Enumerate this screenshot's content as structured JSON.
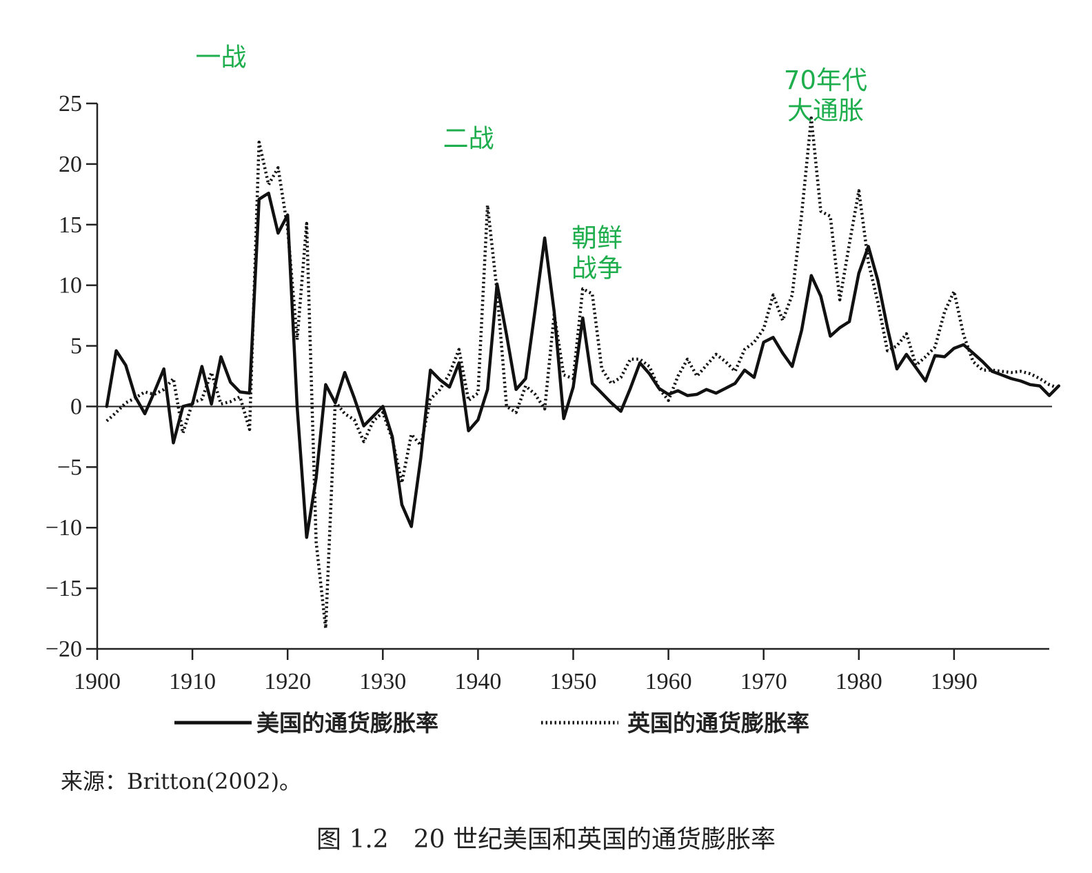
{
  "chart_data": {
    "type": "line",
    "title": "",
    "xlabel": "",
    "ylabel": "",
    "xlim": [
      1900,
      2000
    ],
    "ylim": [
      -20,
      25
    ],
    "x_ticks": [
      1900,
      1910,
      1920,
      1930,
      1940,
      1950,
      1960,
      1970,
      1980,
      1990
    ],
    "y_ticks": [
      25,
      20,
      15,
      10,
      5,
      0,
      -5,
      -10,
      -15,
      -20
    ],
    "grid": false,
    "legend_position": "bottom",
    "series": [
      {
        "name": "美国的通货膨胀率",
        "style": "solid",
        "color": "#111111",
        "points": [
          [
            1901,
            0.0
          ],
          [
            1902,
            4.6
          ],
          [
            1903,
            3.4
          ],
          [
            1904,
            0.8
          ],
          [
            1905,
            -0.6
          ],
          [
            1906,
            1.2
          ],
          [
            1907,
            3.1
          ],
          [
            1908,
            -3.0
          ],
          [
            1909,
            0.0
          ],
          [
            1910,
            0.2
          ],
          [
            1911,
            3.3
          ],
          [
            1912,
            0.2
          ],
          [
            1913,
            4.1
          ],
          [
            1914,
            2.0
          ],
          [
            1915,
            1.2
          ],
          [
            1916,
            1.1
          ],
          [
            1917,
            17.1
          ],
          [
            1918,
            17.6
          ],
          [
            1919,
            14.3
          ],
          [
            1920,
            15.8
          ],
          [
            1921,
            0.0
          ],
          [
            1922,
            -10.8
          ],
          [
            1923,
            -5.9
          ],
          [
            1924,
            1.8
          ],
          [
            1925,
            0.3
          ],
          [
            1926,
            2.8
          ],
          [
            1927,
            0.7
          ],
          [
            1928,
            -1.6
          ],
          [
            1929,
            -0.8
          ],
          [
            1930,
            0.0
          ],
          [
            1931,
            -2.5
          ],
          [
            1932,
            -8.1
          ],
          [
            1933,
            -9.9
          ],
          [
            1934,
            -4.2
          ],
          [
            1935,
            3.0
          ],
          [
            1936,
            2.2
          ],
          [
            1937,
            1.6
          ],
          [
            1938,
            3.6
          ],
          [
            1939,
            -2.0
          ],
          [
            1940,
            -1.1
          ],
          [
            1941,
            1.4
          ],
          [
            1942,
            10.1
          ],
          [
            1943,
            5.9
          ],
          [
            1944,
            1.4
          ],
          [
            1945,
            2.3
          ],
          [
            1946,
            8.0
          ],
          [
            1947,
            13.9
          ],
          [
            1948,
            7.8
          ],
          [
            1949,
            -1.0
          ],
          [
            1950,
            1.6
          ],
          [
            1951,
            7.3
          ],
          [
            1952,
            1.9
          ],
          [
            1953,
            1.1
          ],
          [
            1954,
            0.3
          ],
          [
            1955,
            -0.4
          ],
          [
            1956,
            1.5
          ],
          [
            1957,
            3.6
          ],
          [
            1958,
            2.7
          ],
          [
            1959,
            1.5
          ],
          [
            1960,
            1.0
          ],
          [
            1961,
            1.3
          ],
          [
            1962,
            0.9
          ],
          [
            1963,
            1.0
          ],
          [
            1964,
            1.4
          ],
          [
            1965,
            1.1
          ],
          [
            1966,
            1.5
          ],
          [
            1967,
            1.9
          ],
          [
            1968,
            3.0
          ],
          [
            1969,
            2.4
          ],
          [
            1970,
            5.3
          ],
          [
            1971,
            5.7
          ],
          [
            1972,
            4.4
          ],
          [
            1973,
            3.3
          ],
          [
            1974,
            6.3
          ],
          [
            1975,
            10.8
          ],
          [
            1976,
            9.1
          ],
          [
            1977,
            5.8
          ],
          [
            1978,
            6.5
          ],
          [
            1979,
            7.0
          ],
          [
            1980,
            11.0
          ],
          [
            1981,
            13.2
          ],
          [
            1982,
            10.4
          ],
          [
            1983,
            6.5
          ],
          [
            1984,
            3.1
          ],
          [
            1985,
            4.3
          ],
          [
            1986,
            3.2
          ],
          [
            1987,
            2.1
          ],
          [
            1988,
            4.2
          ],
          [
            1989,
            4.1
          ],
          [
            1990,
            4.8
          ],
          [
            1991,
            5.1
          ],
          [
            1992,
            4.4
          ],
          [
            1993,
            3.7
          ],
          [
            1994,
            2.9
          ],
          [
            1995,
            2.6
          ],
          [
            1996,
            2.3
          ],
          [
            1997,
            2.1
          ],
          [
            1998,
            1.8
          ],
          [
            1999,
            1.7
          ],
          [
            2000,
            0.9
          ],
          [
            2001,
            1.7
          ]
        ]
      },
      {
        "name": "英国的通货膨胀率",
        "style": "dotted",
        "color": "#111111",
        "points": [
          [
            1901,
            -1.2
          ],
          [
            1902,
            -0.5
          ],
          [
            1903,
            0.3
          ],
          [
            1904,
            0.7
          ],
          [
            1905,
            1.2
          ],
          [
            1906,
            1.0
          ],
          [
            1907,
            1.4
          ],
          [
            1908,
            2.3
          ],
          [
            1909,
            -2.2
          ],
          [
            1910,
            0.3
          ],
          [
            1911,
            0.6
          ],
          [
            1912,
            2.8
          ],
          [
            1913,
            0.2
          ],
          [
            1914,
            0.4
          ],
          [
            1915,
            0.8
          ],
          [
            1916,
            -1.9
          ],
          [
            1917,
            21.8
          ],
          [
            1918,
            18.3
          ],
          [
            1919,
            19.7
          ],
          [
            1920,
            14.7
          ],
          [
            1921,
            5.5
          ],
          [
            1922,
            15.1
          ],
          [
            1923,
            -11.2
          ],
          [
            1924,
            -18.3
          ],
          [
            1925,
            0.4
          ],
          [
            1926,
            -0.6
          ],
          [
            1927,
            -1.1
          ],
          [
            1928,
            -2.9
          ],
          [
            1929,
            -1.2
          ],
          [
            1930,
            -0.5
          ],
          [
            1931,
            -2.7
          ],
          [
            1932,
            -6.3
          ],
          [
            1933,
            -2.3
          ],
          [
            1934,
            -3.2
          ],
          [
            1935,
            0.6
          ],
          [
            1936,
            1.4
          ],
          [
            1937,
            2.7
          ],
          [
            1938,
            4.7
          ],
          [
            1939,
            0.5
          ],
          [
            1940,
            1.1
          ],
          [
            1941,
            16.6
          ],
          [
            1942,
            9.5
          ],
          [
            1943,
            0.0
          ],
          [
            1944,
            -0.5
          ],
          [
            1945,
            1.7
          ],
          [
            1946,
            1.0
          ],
          [
            1947,
            -0.2
          ],
          [
            1948,
            7.6
          ],
          [
            1949,
            2.6
          ],
          [
            1950,
            2.3
          ],
          [
            1951,
            9.7
          ],
          [
            1952,
            9.3
          ],
          [
            1953,
            3.1
          ],
          [
            1954,
            1.9
          ],
          [
            1955,
            2.4
          ],
          [
            1956,
            3.9
          ],
          [
            1957,
            3.9
          ],
          [
            1958,
            3.3
          ],
          [
            1959,
            1.5
          ],
          [
            1960,
            0.5
          ],
          [
            1961,
            2.5
          ],
          [
            1962,
            3.9
          ],
          [
            1963,
            2.5
          ],
          [
            1964,
            3.4
          ],
          [
            1965,
            4.3
          ],
          [
            1966,
            3.7
          ],
          [
            1967,
            2.9
          ],
          [
            1968,
            4.7
          ],
          [
            1969,
            5.3
          ],
          [
            1970,
            6.4
          ],
          [
            1971,
            9.2
          ],
          [
            1972,
            7.1
          ],
          [
            1973,
            9.2
          ],
          [
            1974,
            15.9
          ],
          [
            1975,
            23.8
          ],
          [
            1976,
            16.1
          ],
          [
            1977,
            15.7
          ],
          [
            1978,
            8.8
          ],
          [
            1979,
            13.4
          ],
          [
            1980,
            17.8
          ],
          [
            1981,
            11.9
          ],
          [
            1982,
            8.6
          ],
          [
            1983,
            4.6
          ],
          [
            1984,
            5.0
          ],
          [
            1985,
            6.0
          ],
          [
            1986,
            3.4
          ],
          [
            1987,
            4.1
          ],
          [
            1988,
            4.9
          ],
          [
            1989,
            7.8
          ],
          [
            1990,
            9.5
          ],
          [
            1991,
            5.9
          ],
          [
            1992,
            3.7
          ],
          [
            1993,
            3.0
          ],
          [
            1994,
            3.0
          ],
          [
            1995,
            2.9
          ],
          [
            1996,
            2.8
          ],
          [
            1997,
            2.9
          ],
          [
            1998,
            2.7
          ],
          [
            1999,
            2.3
          ],
          [
            2000,
            1.8
          ],
          [
            2001,
            1.5
          ]
        ]
      }
    ],
    "annotations": [
      {
        "id": "ww1",
        "lines": [
          "一战"
        ],
        "x": 1913,
        "y": 28.1
      },
      {
        "id": "ww2",
        "lines": [
          "二战"
        ],
        "x": 1939,
        "y": 21.4
      },
      {
        "id": "korea",
        "lines": [
          "朝鲜",
          "战争"
        ],
        "x": 1952.5,
        "y": 13.2
      },
      {
        "id": "inflation70s",
        "lines": [
          "70年代",
          "大通胀"
        ],
        "x": 1976.5,
        "y": 26.2
      }
    ]
  },
  "source_note": "来源：Britton(2002)。",
  "figure_caption": "图 1.2　20 世纪美国和英国的通货膨胀率"
}
